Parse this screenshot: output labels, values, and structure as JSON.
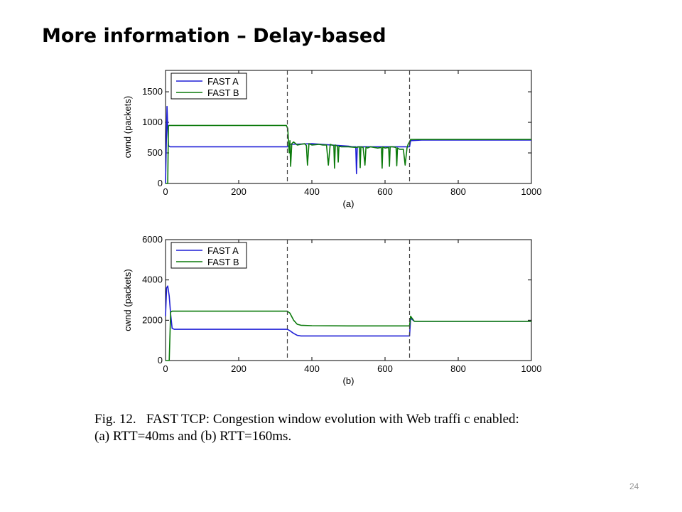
{
  "slide": {
    "title": "More information – Delay-based",
    "page_number": "24"
  },
  "caption": {
    "line1": "Fig. 12.   FAST TCP: Congestion window evolution with Web traffi c enabled:",
    "line2": "(a) RTT=40ms and (b) RTT=160ms."
  },
  "colors": {
    "fast_a": "#1f1fd6",
    "fast_b": "#0b7a0b",
    "frame": "#000000",
    "dashed_marker": "#444444"
  },
  "chart_data": [
    {
      "type": "line",
      "panel_label": "(a)",
      "xlabel": "(a)",
      "ylabel": "cwnd (packets)",
      "xlim": [
        0,
        1000
      ],
      "ylim": [
        0,
        1850
      ],
      "xticks": [
        0,
        200,
        400,
        600,
        800,
        1000
      ],
      "yticks": [
        0,
        500,
        1000,
        1500
      ],
      "vlines": [
        333,
        667
      ],
      "legend_position": "top-left",
      "series": [
        {
          "name": "FAST A",
          "color_key": "fast_a",
          "x": [
            0,
            4,
            6,
            8,
            12,
            20,
            100,
            200,
            300,
            333,
            340,
            400,
            500,
            510,
            520,
            522,
            524,
            528,
            540,
            600,
            650,
            667,
            670,
            700,
            800,
            900,
            1000
          ],
          "y": [
            0,
            1260,
            900,
            620,
            600,
            600,
            600,
            600,
            600,
            600,
            640,
            650,
            610,
            600,
            600,
            160,
            600,
            600,
            600,
            600,
            600,
            600,
            700,
            710,
            710,
            710,
            710
          ]
        },
        {
          "name": "FAST B",
          "color_key": "fast_b",
          "x": [
            0,
            6,
            8,
            10,
            20,
            100,
            200,
            300,
            330,
            334,
            338,
            340,
            342,
            345,
            350,
            360,
            370,
            380,
            385,
            388,
            392,
            400,
            420,
            430,
            440,
            445,
            450,
            460,
            462,
            464,
            470,
            472,
            474,
            480,
            500,
            520,
            530,
            532,
            534,
            540,
            545,
            548,
            552,
            560,
            580,
            590,
            592,
            594,
            600,
            610,
            612,
            614,
            620,
            630,
            632,
            634,
            640,
            650,
            655,
            660,
            663,
            667,
            670,
            700,
            800,
            900,
            1000
          ],
          "y": [
            0,
            0,
            940,
            950,
            950,
            950,
            950,
            950,
            950,
            900,
            500,
            700,
            280,
            650,
            680,
            630,
            640,
            650,
            620,
            300,
            650,
            630,
            640,
            630,
            630,
            300,
            640,
            620,
            250,
            630,
            610,
            350,
            610,
            600,
            600,
            590,
            600,
            260,
            600,
            590,
            300,
            600,
            580,
            600,
            580,
            590,
            250,
            600,
            580,
            590,
            280,
            600,
            600,
            590,
            290,
            580,
            560,
            560,
            300,
            580,
            640,
            680,
            720,
            720,
            720,
            720,
            720
          ]
        }
      ]
    },
    {
      "type": "line",
      "panel_label": "(b)",
      "xlabel": "(b)",
      "ylabel": "cwnd (packets)",
      "xlim": [
        0,
        1000
      ],
      "ylim": [
        0,
        6000
      ],
      "xticks": [
        0,
        200,
        400,
        600,
        800,
        1000
      ],
      "yticks": [
        0,
        2000,
        4000,
        6000
      ],
      "vlines": [
        333,
        667
      ],
      "legend_position": "top-left",
      "series": [
        {
          "name": "FAST A",
          "color_key": "fast_a",
          "x": [
            0,
            3,
            6,
            10,
            14,
            18,
            24,
            30,
            100,
            200,
            300,
            333,
            340,
            350,
            360,
            370,
            400,
            500,
            600,
            667,
            670,
            680,
            700,
            800,
            900,
            1000
          ],
          "y": [
            2200,
            3600,
            3700,
            3200,
            2300,
            1600,
            1550,
            1550,
            1550,
            1550,
            1550,
            1550,
            1480,
            1350,
            1250,
            1220,
            1220,
            1220,
            1220,
            1220,
            2100,
            1950,
            1950,
            1950,
            1950,
            1950
          ]
        },
        {
          "name": "FAST B",
          "color_key": "fast_b",
          "x": [
            0,
            10,
            14,
            18,
            30,
            100,
            200,
            300,
            333,
            340,
            350,
            360,
            370,
            400,
            500,
            600,
            660,
            667,
            670,
            680,
            700,
            800,
            900,
            1000
          ],
          "y": [
            0,
            0,
            2400,
            2450,
            2450,
            2450,
            2450,
            2450,
            2450,
            2350,
            2000,
            1800,
            1750,
            1730,
            1720,
            1720,
            1720,
            1720,
            2200,
            1950,
            1950,
            1950,
            1950,
            1950
          ]
        }
      ]
    }
  ]
}
